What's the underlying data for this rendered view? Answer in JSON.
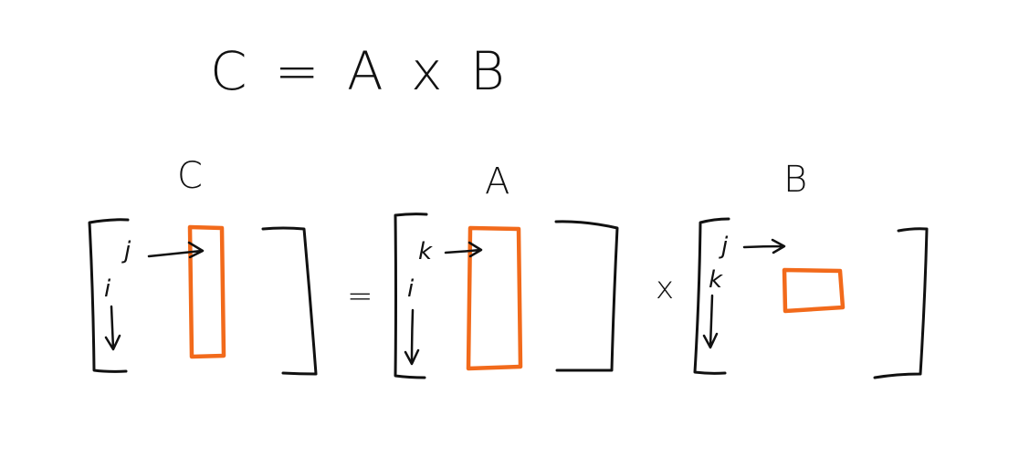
{
  "equation": {
    "text": "C = A x B"
  },
  "matrices": {
    "c": {
      "label": "C",
      "row_index": "i",
      "col_index": "j"
    },
    "a": {
      "label": "A",
      "row_index": "i",
      "col_index": "k"
    },
    "b": {
      "label": "B",
      "row_index": "k",
      "col_index": "j"
    }
  },
  "operators": {
    "equals": "=",
    "times": "x"
  },
  "colors": {
    "ink": "#111111",
    "highlight": "#f26a1b"
  }
}
